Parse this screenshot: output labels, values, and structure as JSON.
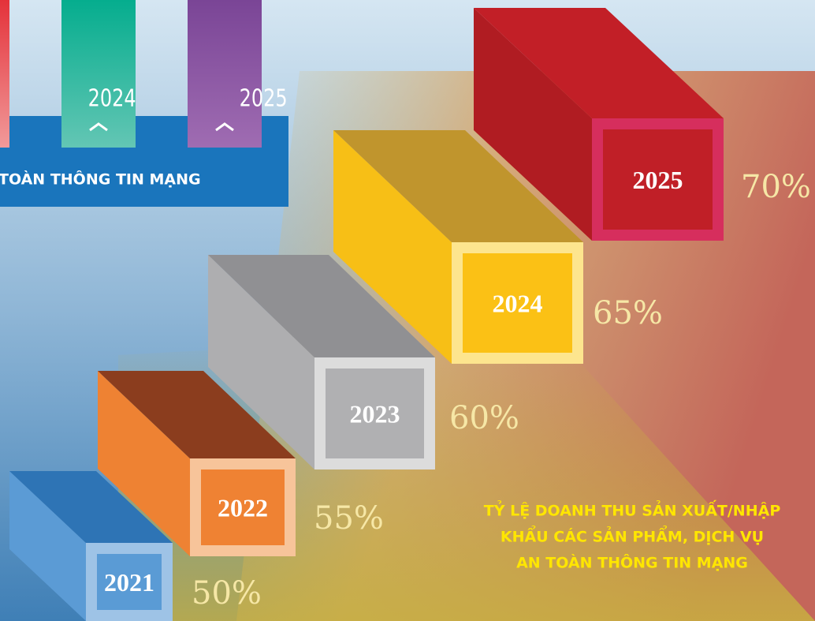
{
  "banner": {
    "tabs": [
      "2024",
      "2025"
    ],
    "text": "TOÀN THÔNG TIN MẠNG"
  },
  "steps": [
    {
      "year": "2021",
      "percent": "50%"
    },
    {
      "year": "2022",
      "percent": "55%"
    },
    {
      "year": "2023",
      "percent": "60%"
    },
    {
      "year": "2024",
      "percent": "65%"
    },
    {
      "year": "2025",
      "percent": "70%"
    }
  ],
  "caption": [
    "TỶ LỆ DOANH THU SẢN XUẤT/NHẬP",
    "KHẨU CÁC SẢN PHẨM, DỊCH VỤ",
    "AN TOÀN THÔNG TIN MẠNG"
  ]
}
